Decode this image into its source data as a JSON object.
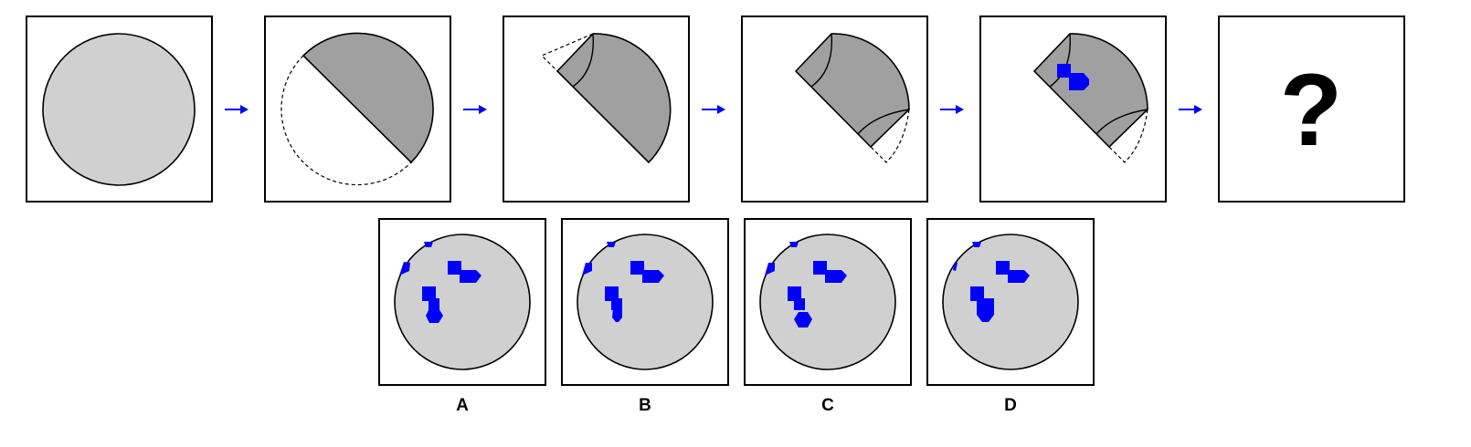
{
  "puzzle": {
    "unknown_mark": "?",
    "options": [
      {
        "label": "A"
      },
      {
        "label": "B"
      },
      {
        "label": "C"
      },
      {
        "label": "D"
      }
    ]
  },
  "colors": {
    "paper": "#d0d0d0",
    "folded_layer": "#a0a0a0",
    "punched_hole": "#0000ff",
    "arrow": "#0000ff"
  }
}
